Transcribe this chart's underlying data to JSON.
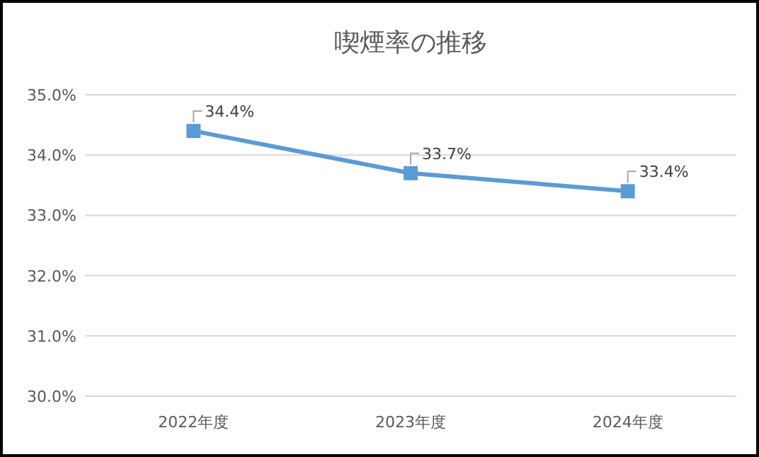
{
  "chart_data": {
    "type": "line",
    "title": "喫煙率の推移",
    "categories": [
      "2022年度",
      "2023年度",
      "2024年度"
    ],
    "series": [
      {
        "color": "#5b9bd5",
        "values": [
          34.4,
          33.7,
          33.4
        ],
        "value_labels": [
          "34.4%",
          "33.7%",
          "33.4%"
        ]
      }
    ],
    "ylim": [
      30,
      35
    ],
    "yticks": [
      {
        "value": 30,
        "label": "30.0%"
      },
      {
        "value": 31,
        "label": "31.0%"
      },
      {
        "value": 32,
        "label": "32.0%"
      },
      {
        "value": 33,
        "label": "33.0%"
      },
      {
        "value": 34,
        "label": "34.0%"
      },
      {
        "value": 35,
        "label": "35.0%"
      }
    ],
    "grid": "y",
    "marker": "square",
    "line_style": "solid"
  }
}
